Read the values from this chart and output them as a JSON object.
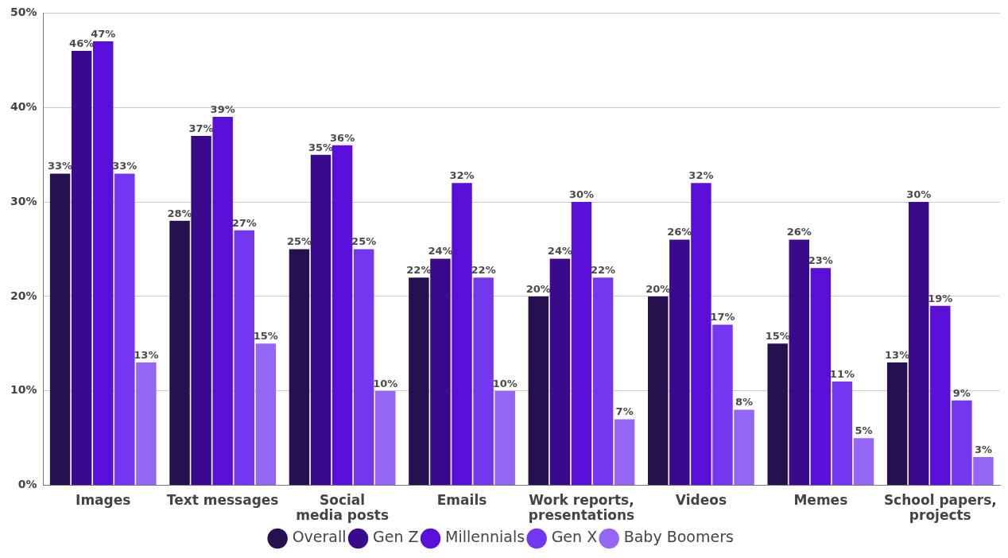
{
  "chart_data": {
    "type": "bar",
    "categories": [
      "Images",
      "Text messages",
      "Social\nmedia posts",
      "Emails",
      "Work reports,\npresentations",
      "Videos",
      "Memes",
      "School papers,\nprojects"
    ],
    "series": [
      {
        "name": "Overall",
        "color": "#27104f",
        "values": [
          33,
          28,
          25,
          22,
          20,
          20,
          15,
          13
        ],
        "value_labels": [
          "33%",
          "28%",
          "25%",
          "22%",
          "20%",
          "20%",
          "15%",
          "13%"
        ]
      },
      {
        "name": "Gen Z",
        "color": "#3a0a8c",
        "values": [
          46,
          37,
          35,
          24,
          24,
          26,
          26,
          30
        ],
        "value_labels": [
          "46%",
          "37%",
          "35%",
          "24%",
          "24%",
          "26%",
          "26%",
          "30%"
        ]
      },
      {
        "name": "Millennials",
        "color": "#5a0fd8",
        "values": [
          47,
          39,
          36,
          32,
          30,
          32,
          23,
          19
        ],
        "value_labels": [
          "47%",
          "39%",
          "36%",
          "32%",
          "30%",
          "32%",
          "23%",
          "19%"
        ]
      },
      {
        "name": "Gen X",
        "color": "#7237ee",
        "values": [
          33,
          27,
          25,
          22,
          22,
          17,
          11,
          9
        ],
        "value_labels": [
          "33%",
          "27%",
          "25%",
          "22%",
          "22%",
          "17%",
          "11%",
          "9%"
        ]
      },
      {
        "name": "Baby Boomers",
        "color": "#9466f6",
        "values": [
          13,
          15,
          10,
          10,
          7,
          8,
          5,
          3
        ],
        "value_labels": [
          "13%",
          "15%",
          "10%",
          "10%",
          "7%",
          "8%",
          "5%",
          "3%"
        ]
      }
    ],
    "ylim": [
      0,
      50
    ],
    "yticks": [
      {
        "value": 0,
        "label": "0%"
      },
      {
        "value": 10,
        "label": "10%"
      },
      {
        "value": 20,
        "label": "20%"
      },
      {
        "value": 30,
        "label": "30%"
      },
      {
        "value": 40,
        "label": "40%"
      },
      {
        "value": 50,
        "label": "50%"
      }
    ],
    "grid": "y",
    "legend": "bottom"
  }
}
